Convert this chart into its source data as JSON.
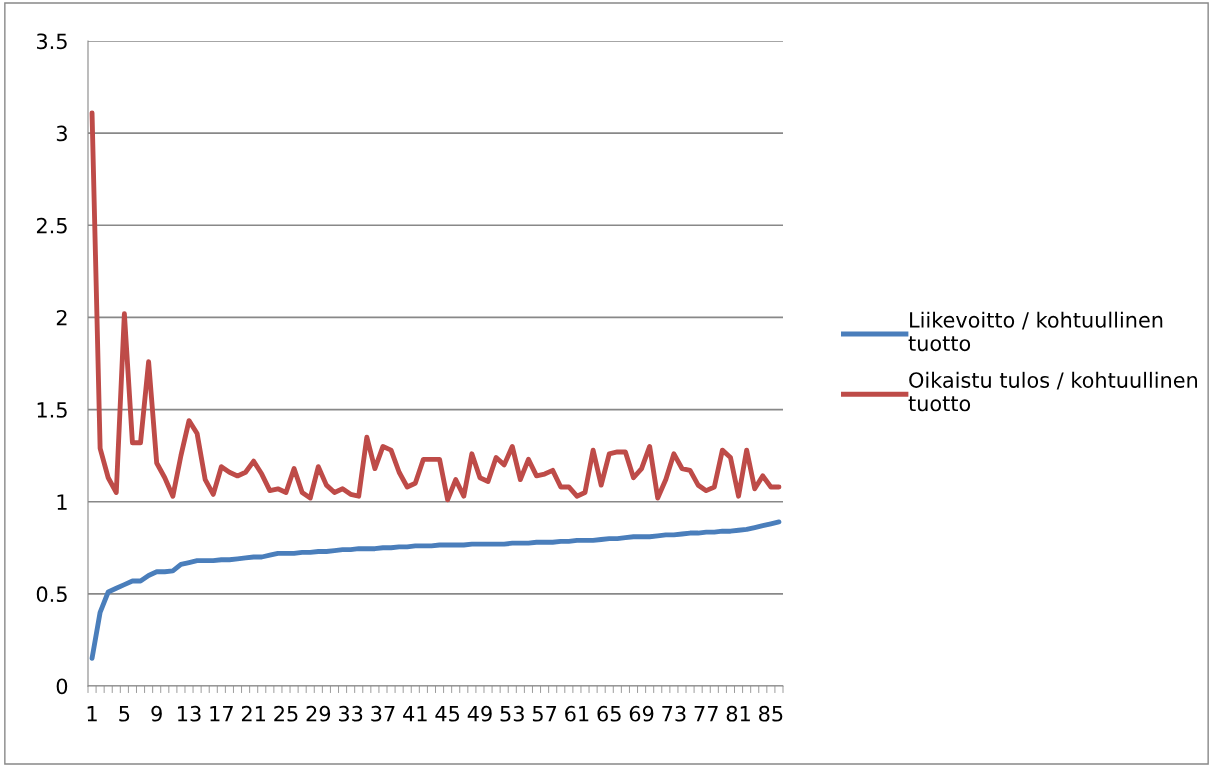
{
  "chart_data": {
    "type": "line",
    "categories": [
      "1",
      null,
      null,
      null,
      "5",
      null,
      null,
      null,
      "9",
      null,
      null,
      null,
      "13",
      null,
      null,
      null,
      "17",
      null,
      null,
      null,
      "21",
      null,
      null,
      null,
      "25",
      null,
      null,
      null,
      "29",
      null,
      null,
      null,
      "33",
      null,
      null,
      null,
      "37",
      null,
      null,
      null,
      "41",
      null,
      null,
      null,
      "45",
      null,
      null,
      null,
      "49",
      null,
      null,
      null,
      "53",
      null,
      null,
      null,
      "57",
      null,
      null,
      null,
      "61",
      null,
      null,
      null,
      "65",
      null,
      null,
      null,
      "69",
      null,
      null,
      null,
      "73",
      null,
      null,
      null,
      "77",
      null,
      null,
      null,
      "81",
      null,
      null,
      null,
      "85",
      null
    ],
    "series": [
      {
        "name": "Liikevoitto / kohtuullinen tuotto",
        "color": "#4a7ebb",
        "values": [
          0.15,
          0.4,
          0.51,
          0.53,
          0.55,
          0.57,
          0.57,
          0.6,
          0.62,
          0.62,
          0.625,
          0.66,
          0.67,
          0.68,
          0.68,
          0.68,
          0.685,
          0.685,
          0.69,
          0.695,
          0.7,
          0.7,
          0.71,
          0.72,
          0.72,
          0.72,
          0.725,
          0.725,
          0.73,
          0.73,
          0.735,
          0.74,
          0.74,
          0.745,
          0.745,
          0.745,
          0.75,
          0.75,
          0.755,
          0.755,
          0.76,
          0.76,
          0.76,
          0.765,
          0.765,
          0.765,
          0.765,
          0.77,
          0.77,
          0.77,
          0.77,
          0.77,
          0.775,
          0.775,
          0.775,
          0.78,
          0.78,
          0.78,
          0.785,
          0.785,
          0.79,
          0.79,
          0.79,
          0.795,
          0.8,
          0.8,
          0.805,
          0.81,
          0.81,
          0.81,
          0.815,
          0.82,
          0.82,
          0.825,
          0.83,
          0.83,
          0.835,
          0.835,
          0.84,
          0.84,
          0.845,
          0.85,
          0.86,
          0.87,
          0.88,
          0.89
        ]
      },
      {
        "name": "Oikaistu tulos / kohtuullinen tuotto",
        "color": "#be4b48",
        "values": [
          3.11,
          1.29,
          1.13,
          1.05,
          2.02,
          1.32,
          1.32,
          1.76,
          1.21,
          1.13,
          1.03,
          1.25,
          1.44,
          1.37,
          1.12,
          1.04,
          1.19,
          1.16,
          1.14,
          1.16,
          1.22,
          1.15,
          1.06,
          1.07,
          1.05,
          1.18,
          1.05,
          1.02,
          1.19,
          1.09,
          1.05,
          1.07,
          1.04,
          1.03,
          1.35,
          1.18,
          1.3,
          1.28,
          1.16,
          1.08,
          1.1,
          1.23,
          1.23,
          1.23,
          1.01,
          1.12,
          1.03,
          1.26,
          1.13,
          1.11,
          1.24,
          1.2,
          1.3,
          1.12,
          1.23,
          1.14,
          1.15,
          1.17,
          1.08,
          1.08,
          1.03,
          1.05,
          1.28,
          1.09,
          1.26,
          1.27,
          1.27,
          1.13,
          1.18,
          1.3,
          1.02,
          1.12,
          1.26,
          1.18,
          1.17,
          1.09,
          1.06,
          1.08,
          1.28,
          1.24,
          1.03,
          1.28,
          1.07,
          1.14,
          1.08,
          1.08
        ]
      }
    ],
    "ylim": [
      0,
      3.5
    ],
    "yticks": [
      0,
      0.5,
      1,
      1.5,
      2,
      2.5,
      3,
      3.5
    ],
    "grid": "y",
    "legend": "right",
    "marker": "none",
    "line_style": "solid"
  }
}
